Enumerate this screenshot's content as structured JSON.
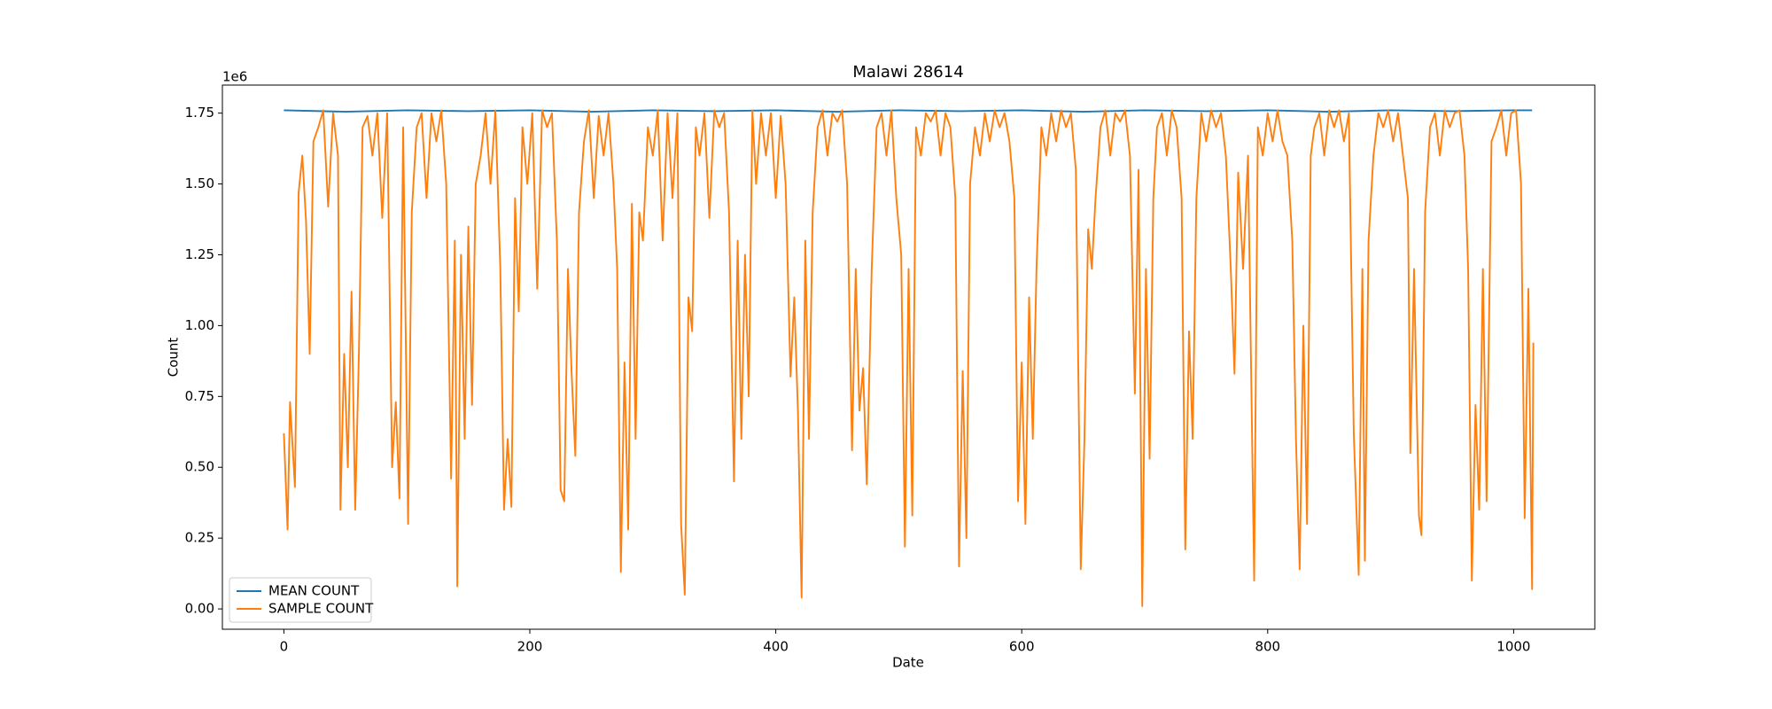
{
  "chart_data": {
    "type": "line",
    "title": "Malawi 28614",
    "x_label": "Date",
    "y_label": "Count",
    "y_offset_label": "1e6",
    "xlim": [
      -50,
      1066
    ],
    "ylim": [
      -71700,
      1849000
    ],
    "xticks": [
      0,
      200,
      400,
      600,
      800,
      1000
    ],
    "yticks": [
      {
        "value": 0,
        "label": "0.00"
      },
      {
        "value": 250000,
        "label": "0.25"
      },
      {
        "value": 500000,
        "label": "0.50"
      },
      {
        "value": 750000,
        "label": "0.75"
      },
      {
        "value": 1000000,
        "label": "1.00"
      },
      {
        "value": 1250000,
        "label": "1.25"
      },
      {
        "value": 1500000,
        "label": "1.50"
      },
      {
        "value": 1750000,
        "label": "1.75"
      }
    ],
    "grid": false,
    "legend": "lower left",
    "series": [
      {
        "name": "MEAN COUNT",
        "color": "#1f77b4",
        "x": [
          0,
          50,
          100,
          150,
          200,
          250,
          300,
          350,
          400,
          450,
          500,
          550,
          600,
          650,
          700,
          750,
          800,
          850,
          900,
          950,
          1000,
          1015
        ],
        "values": [
          1760000,
          1755000,
          1760000,
          1757000,
          1760000,
          1755000,
          1760000,
          1757000,
          1760000,
          1755000,
          1760000,
          1757000,
          1760000,
          1755000,
          1760000,
          1757000,
          1760000,
          1755000,
          1760000,
          1757000,
          1760000,
          1760000
        ]
      },
      {
        "name": "SAMPLE COUNT",
        "color": "#ff7f0e",
        "x": [
          0,
          3,
          5,
          9,
          12,
          15,
          18,
          21,
          24,
          28,
          32,
          36,
          40,
          44,
          46,
          49,
          52,
          55,
          58,
          61,
          64,
          68,
          72,
          76,
          80,
          84,
          88,
          91,
          94,
          97,
          101,
          104,
          108,
          112,
          116,
          120,
          124,
          128,
          132,
          136,
          139,
          141,
          144,
          147,
          150,
          153,
          156,
          160,
          164,
          168,
          172,
          176,
          179,
          182,
          185,
          188,
          191,
          194,
          198,
          202,
          206,
          210,
          214,
          218,
          222,
          225,
          228,
          231,
          234,
          237,
          240,
          244,
          248,
          252,
          256,
          260,
          264,
          268,
          271,
          274,
          277,
          280,
          283,
          286,
          289,
          292,
          296,
          300,
          304,
          308,
          312,
          316,
          320,
          323,
          326,
          329,
          332,
          335,
          338,
          342,
          346,
          350,
          354,
          358,
          362,
          366,
          369,
          372,
          375,
          378,
          381,
          384,
          388,
          392,
          396,
          400,
          404,
          408,
          412,
          415,
          418,
          421,
          424,
          427,
          430,
          434,
          438,
          442,
          446,
          450,
          454,
          458,
          462,
          465,
          468,
          471,
          474,
          478,
          482,
          486,
          490,
          494,
          498,
          502,
          505,
          508,
          511,
          514,
          518,
          522,
          526,
          530,
          534,
          538,
          542,
          546,
          549,
          552,
          555,
          558,
          562,
          566,
          570,
          574,
          578,
          582,
          586,
          590,
          594,
          597,
          600,
          603,
          606,
          609,
          612,
          616,
          620,
          624,
          628,
          632,
          636,
          640,
          644,
          648,
          651,
          654,
          657,
          660,
          664,
          668,
          672,
          676,
          680,
          684,
          688,
          692,
          695,
          698,
          701,
          704,
          707,
          710,
          714,
          718,
          722,
          726,
          730,
          733,
          736,
          739,
          742,
          746,
          750,
          754,
          758,
          762,
          766,
          770,
          773,
          776,
          780,
          784,
          789,
          792,
          796,
          800,
          804,
          808,
          812,
          816,
          820,
          823,
          826,
          829,
          832,
          835,
          838,
          842,
          846,
          850,
          854,
          858,
          862,
          866,
          870,
          874,
          877,
          879,
          882,
          886,
          890,
          894,
          898,
          902,
          906,
          910,
          914,
          916,
          919,
          923,
          925,
          928,
          932,
          936,
          940,
          944,
          948,
          952,
          956,
          960,
          963,
          966,
          969,
          972,
          975,
          978,
          982,
          986,
          990,
          994,
          998,
          1002,
          1006,
          1009,
          1012,
          1015,
          1016
        ],
        "values": [
          620000,
          280000,
          730000,
          430000,
          1470000,
          1600000,
          1370000,
          900000,
          1650000,
          1700000,
          1760000,
          1420000,
          1750000,
          1600000,
          350000,
          900000,
          500000,
          1120000,
          350000,
          900000,
          1700000,
          1740000,
          1600000,
          1750000,
          1380000,
          1750000,
          500000,
          730000,
          390000,
          1700000,
          300000,
          1400000,
          1700000,
          1750000,
          1450000,
          1750000,
          1650000,
          1760000,
          1500000,
          460000,
          1300000,
          80000,
          1250000,
          600000,
          1350000,
          720000,
          1500000,
          1600000,
          1750000,
          1500000,
          1760000,
          1200000,
          350000,
          600000,
          360000,
          1450000,
          1050000,
          1700000,
          1500000,
          1750000,
          1130000,
          1760000,
          1700000,
          1750000,
          1300000,
          420000,
          380000,
          1200000,
          830000,
          540000,
          1400000,
          1650000,
          1760000,
          1450000,
          1740000,
          1600000,
          1750000,
          1500000,
          1200000,
          130000,
          870000,
          280000,
          1430000,
          600000,
          1400000,
          1300000,
          1700000,
          1600000,
          1760000,
          1300000,
          1750000,
          1450000,
          1750000,
          300000,
          50000,
          1100000,
          980000,
          1700000,
          1600000,
          1750000,
          1380000,
          1760000,
          1700000,
          1750000,
          1400000,
          450000,
          1300000,
          600000,
          1250000,
          750000,
          1760000,
          1500000,
          1750000,
          1600000,
          1750000,
          1450000,
          1740000,
          1500000,
          820000,
          1100000,
          700000,
          40000,
          1300000,
          600000,
          1400000,
          1700000,
          1760000,
          1600000,
          1750000,
          1720000,
          1760000,
          1500000,
          560000,
          1200000,
          700000,
          850000,
          440000,
          1200000,
          1700000,
          1750000,
          1600000,
          1760000,
          1450000,
          1250000,
          220000,
          1200000,
          330000,
          1700000,
          1600000,
          1750000,
          1720000,
          1760000,
          1600000,
          1750000,
          1700000,
          1450000,
          150000,
          840000,
          250000,
          1500000,
          1700000,
          1600000,
          1750000,
          1650000,
          1760000,
          1700000,
          1750000,
          1650000,
          1450000,
          380000,
          870000,
          300000,
          1100000,
          600000,
          1200000,
          1700000,
          1600000,
          1750000,
          1650000,
          1760000,
          1700000,
          1750000,
          1550000,
          140000,
          600000,
          1340000,
          1200000,
          1450000,
          1700000,
          1760000,
          1600000,
          1750000,
          1720000,
          1760000,
          1600000,
          760000,
          1550000,
          10000,
          1200000,
          530000,
          1450000,
          1700000,
          1750000,
          1600000,
          1760000,
          1700000,
          1450000,
          210000,
          980000,
          600000,
          1450000,
          1750000,
          1650000,
          1760000,
          1700000,
          1750000,
          1600000,
          1200000,
          830000,
          1540000,
          1200000,
          1600000,
          100000,
          1700000,
          1600000,
          1750000,
          1650000,
          1760000,
          1650000,
          1600000,
          1300000,
          600000,
          140000,
          1000000,
          300000,
          1600000,
          1700000,
          1750000,
          1600000,
          1760000,
          1700000,
          1760000,
          1650000,
          1750000,
          620000,
          120000,
          1200000,
          170000,
          1300000,
          1600000,
          1750000,
          1700000,
          1760000,
          1650000,
          1750000,
          1600000,
          1450000,
          550000,
          1200000,
          330000,
          260000,
          1400000,
          1700000,
          1750000,
          1600000,
          1760000,
          1700000,
          1750000,
          1760000,
          1600000,
          1200000,
          100000,
          720000,
          350000,
          1200000,
          380000,
          1650000,
          1700000,
          1760000,
          1600000,
          1750000,
          1760000,
          1500000,
          320000,
          1130000,
          70000,
          940000
        ]
      }
    ]
  }
}
